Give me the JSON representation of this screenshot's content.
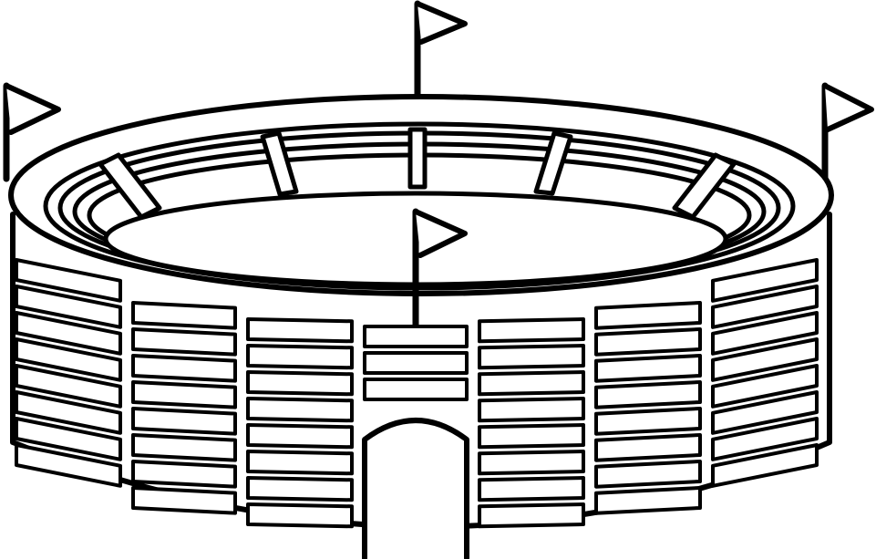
{
  "illustration": {
    "subject": "stadium-icon",
    "style": "black outline line art on white",
    "stroke_color": "#000000",
    "fill_color": "#ffffff",
    "flag_count": 4,
    "seat_columns": 7,
    "seat_rows": 8,
    "has_entrance_arch": true
  }
}
